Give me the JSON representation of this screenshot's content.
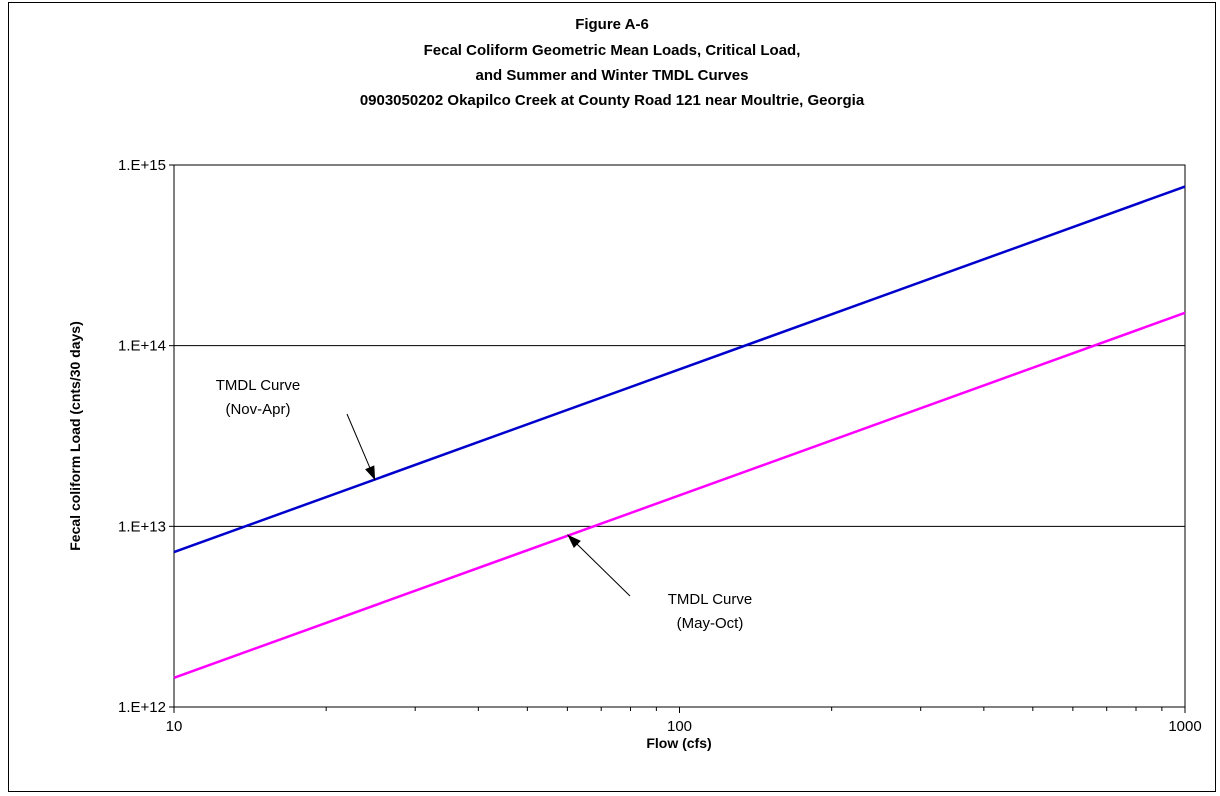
{
  "chart_data": {
    "type": "line",
    "title_lines": [
      "Figure A-6",
      "Fecal Coliform Geometric Mean Loads,  Critical Load,",
      "and Summer and Winter TMDL Curves",
      "0903050202 Okapilco Creek at County Road 121 near Moultrie, Georgia"
    ],
    "xlabel": "Flow   (cfs)",
    "ylabel": "Fecal coliform Load  (cnts/30 days)",
    "x_scale": "log",
    "y_scale": "log",
    "xlim": [
      10,
      1000
    ],
    "ylim": [
      1000000000000.0,
      1000000000000000.0
    ],
    "x_ticks": [
      10,
      100,
      1000
    ],
    "x_tick_labels": [
      "10",
      "100",
      "1000"
    ],
    "y_ticks": [
      1000000000000.0,
      10000000000000.0,
      100000000000000.0,
      1000000000000000.0
    ],
    "y_tick_labels": [
      "1.E+12",
      "1.E+13",
      "1.E+14",
      "1.E+15"
    ],
    "grid": "horizontal major",
    "series": [
      {
        "id": "winter",
        "x": [
          10,
          1000
        ],
        "y": [
          7200000000000.0,
          760000000000000.0
        ],
        "color": "#0000cc"
      },
      {
        "id": "summer",
        "x": [
          10,
          1000
        ],
        "y": [
          1450000000000.0,
          152000000000000.0
        ],
        "color": "#ff00ff"
      }
    ],
    "annotations": [
      {
        "id": "winter",
        "lines": [
          "TMDL Curve",
          "(Nov-Apr)"
        ],
        "arrow_to": [
          25,
          18000000000000.0
        ]
      },
      {
        "id": "summer",
        "lines": [
          "TMDL Curve",
          "(May-Oct)"
        ],
        "arrow_to": [
          60,
          9000000000000.0
        ]
      }
    ]
  }
}
